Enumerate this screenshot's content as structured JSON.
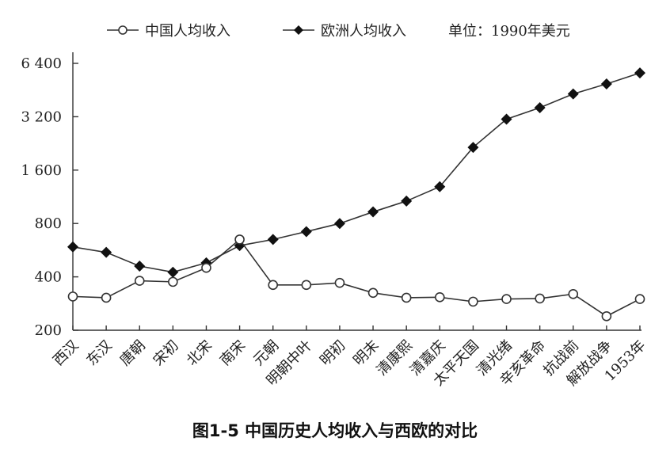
{
  "caption": "图1-5 中国历史人均收入与西欧的对比",
  "chart_data": {
    "type": "line",
    "title": "",
    "unit_note": "单位：1990年美元",
    "categories": [
      "西汉",
      "东汉",
      "唐朝",
      "宋初",
      "北宋",
      "南宋",
      "元朝",
      "明朝中叶",
      "明初",
      "明末",
      "清康熙",
      "清嘉庆",
      "太平天国",
      "清光绪",
      "辛亥革命",
      "抗战前",
      "解放战争",
      "1953年"
    ],
    "y_scale": "log2",
    "ylim": [
      200,
      6400
    ],
    "y_ticks": [
      200,
      400,
      800,
      1600,
      3200,
      6400
    ],
    "y_tick_labels": [
      "200",
      "400",
      "800",
      "1 600",
      "3 200",
      "6 400"
    ],
    "legend_position": "top",
    "grid": false,
    "series": [
      {
        "name": "中国人均收入",
        "marker": "open-circle",
        "values": [
          310,
          305,
          380,
          375,
          450,
          650,
          360,
          360,
          370,
          325,
          305,
          307,
          290,
          300,
          302,
          320,
          240,
          300
        ]
      },
      {
        "name": "欧洲人均收入",
        "marker": "filled-diamond",
        "values": [
          590,
          550,
          460,
          425,
          480,
          600,
          650,
          720,
          800,
          930,
          1070,
          1290,
          2150,
          3100,
          3600,
          4300,
          4900,
          5650
        ]
      }
    ]
  }
}
